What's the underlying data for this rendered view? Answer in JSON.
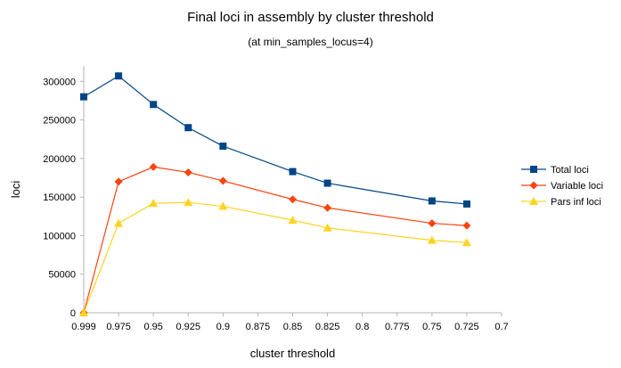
{
  "chart_data": {
    "type": "line",
    "title": "Final loci in assembly by cluster threshold",
    "subtitle": "(at min_samples_locus=4)",
    "xlabel": "cluster threshold",
    "ylabel": "loci",
    "x_ticks": [
      "0.999",
      "0.975",
      "0.95",
      "0.925",
      "0.9",
      "0.875",
      "0.85",
      "0.825",
      "0.8",
      "0.775",
      "0.75",
      "0.725",
      "0.7"
    ],
    "y_ticks": [
      "0",
      "50000",
      "100000",
      "150000",
      "200000",
      "250000",
      "300000"
    ],
    "ylim": [
      0,
      320000
    ],
    "grid": false,
    "legend_position": "right",
    "series": [
      {
        "name": "Total loci",
        "color": "#004586",
        "marker": "square",
        "points": [
          {
            "x": "0.999",
            "y": 280000
          },
          {
            "x": "0.975",
            "y": 307000
          },
          {
            "x": "0.95",
            "y": 270000
          },
          {
            "x": "0.925",
            "y": 240000
          },
          {
            "x": "0.9",
            "y": 216000
          },
          {
            "x": "0.85",
            "y": 183000
          },
          {
            "x": "0.825",
            "y": 168000
          },
          {
            "x": "0.75",
            "y": 145000
          },
          {
            "x": "0.725",
            "y": 141000
          }
        ]
      },
      {
        "name": "Variable loci",
        "color": "#ff420e",
        "marker": "diamond",
        "points": [
          {
            "x": "0.999",
            "y": 0
          },
          {
            "x": "0.975",
            "y": 170000
          },
          {
            "x": "0.95",
            "y": 189000
          },
          {
            "x": "0.925",
            "y": 182000
          },
          {
            "x": "0.9",
            "y": 171000
          },
          {
            "x": "0.85",
            "y": 147000
          },
          {
            "x": "0.825",
            "y": 136000
          },
          {
            "x": "0.75",
            "y": 116000
          },
          {
            "x": "0.725",
            "y": 113000
          }
        ]
      },
      {
        "name": "Pars inf loci",
        "color": "#ffd320",
        "marker": "triangle",
        "points": [
          {
            "x": "0.999",
            "y": 0
          },
          {
            "x": "0.975",
            "y": 116000
          },
          {
            "x": "0.95",
            "y": 142000
          },
          {
            "x": "0.925",
            "y": 143000
          },
          {
            "x": "0.9",
            "y": 138000
          },
          {
            "x": "0.85",
            "y": 120000
          },
          {
            "x": "0.825",
            "y": 110000
          },
          {
            "x": "0.75",
            "y": 94000
          },
          {
            "x": "0.725",
            "y": 91000
          }
        ]
      }
    ]
  }
}
